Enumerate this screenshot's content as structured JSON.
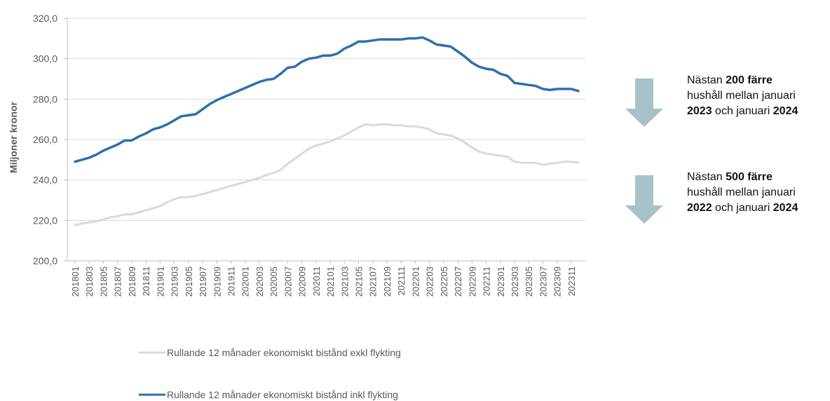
{
  "chart_data": {
    "type": "line",
    "title": "",
    "xlabel": "",
    "ylabel": "Miljoner kronor",
    "ylim": [
      200,
      320
    ],
    "yticks": [
      "200,0",
      "220,0",
      "240,0",
      "260,0",
      "280,0",
      "300,0",
      "320,0"
    ],
    "ytick_values": [
      200,
      220,
      240,
      260,
      280,
      300,
      320
    ],
    "x": [
      "201801",
      "201802",
      "201803",
      "201804",
      "201805",
      "201806",
      "201807",
      "201808",
      "201809",
      "201810",
      "201811",
      "201812",
      "201901",
      "201902",
      "201903",
      "201904",
      "201905",
      "201906",
      "201907",
      "201908",
      "201909",
      "201910",
      "201911",
      "201912",
      "202001",
      "202002",
      "202003",
      "202004",
      "202005",
      "202006",
      "202007",
      "202008",
      "202009",
      "202010",
      "202011",
      "202012",
      "202101",
      "202102",
      "202103",
      "202104",
      "202105",
      "202106",
      "202107",
      "202108",
      "202109",
      "202110",
      "202111",
      "202112",
      "202201",
      "202202",
      "202203",
      "202204",
      "202205",
      "202206",
      "202207",
      "202208",
      "202209",
      "202210",
      "202211",
      "202212",
      "202301",
      "202302",
      "202303",
      "202304",
      "202305",
      "202306",
      "202307",
      "202308",
      "202309",
      "202310",
      "202311",
      "202312"
    ],
    "xtick_labels": [
      "201801",
      "201803",
      "201805",
      "201807",
      "201809",
      "201811",
      "201901",
      "201903",
      "201905",
      "201907",
      "201909",
      "201911",
      "202001",
      "202003",
      "202005",
      "202007",
      "202009",
      "202011",
      "202101",
      "202103",
      "202105",
      "202107",
      "202109",
      "202111",
      "202201",
      "202203",
      "202205",
      "202207",
      "202209",
      "202211",
      "202301",
      "202303",
      "202305",
      "202307",
      "202309",
      "202311"
    ],
    "grid": "horizontal",
    "legend_position": "bottom",
    "series": [
      {
        "name": "Rullande 12 månader ekonomiskt bistånd exkl flykting",
        "color": "#d9d9d9",
        "values": [
          217.5,
          218.5,
          219.0,
          219.5,
          220.5,
          221.5,
          222.0,
          223.0,
          223.0,
          224.0,
          225.0,
          226.0,
          227.0,
          229.0,
          230.5,
          231.5,
          231.5,
          232.0,
          233.0,
          234.0,
          235.0,
          236.0,
          237.0,
          238.0,
          239.0,
          240.0,
          241.0,
          242.5,
          243.5,
          245.0,
          248.0,
          250.5,
          253.0,
          255.5,
          257.0,
          258.0,
          259.0,
          260.5,
          262.0,
          264.0,
          266.0,
          267.5,
          267.0,
          267.5,
          267.5,
          267.0,
          267.0,
          266.5,
          266.5,
          266.0,
          265.0,
          263.0,
          262.5,
          262.0,
          260.5,
          258.5,
          256.0,
          254.0,
          253.0,
          252.5,
          252.0,
          251.5,
          249.0,
          248.5,
          248.5,
          248.5,
          247.5,
          248.0,
          248.5,
          249.0,
          249.0,
          248.5
        ]
      },
      {
        "name": "Rullande 12 månader ekonomiskt bistånd inkl flykting",
        "color": "#2e6fae",
        "values": [
          249.0,
          250.0,
          251.0,
          252.5,
          254.5,
          256.0,
          257.5,
          259.5,
          259.5,
          261.5,
          263.0,
          265.0,
          266.0,
          267.5,
          269.5,
          271.5,
          272.0,
          272.5,
          275.0,
          277.5,
          279.5,
          281.0,
          282.5,
          284.0,
          285.5,
          287.0,
          288.5,
          289.5,
          290.0,
          292.5,
          295.5,
          296.0,
          298.5,
          300.0,
          300.5,
          301.5,
          301.5,
          302.5,
          305.0,
          306.5,
          308.5,
          308.5,
          309.0,
          309.5,
          309.5,
          309.5,
          309.5,
          310.0,
          310.0,
          310.5,
          309.0,
          307.0,
          306.5,
          306.0,
          303.5,
          301.0,
          298.0,
          296.0,
          295.0,
          294.5,
          292.5,
          291.5,
          288.0,
          287.5,
          287.0,
          286.5,
          285.0,
          284.5,
          285.0,
          285.0,
          285.0,
          284.0
        ]
      }
    ]
  },
  "annotations": [
    {
      "line1_pre": "Nästan ",
      "line1_bold": "200 färre",
      "line2": "hushåll mellan januari",
      "line3_bold_a": "2023",
      "line3_mid": " och januari ",
      "line3_bold_b": "2024"
    },
    {
      "line1_pre": "Nästan ",
      "line1_bold": "500 färre",
      "line2": "hushåll mellan januari",
      "line3_bold_a": "2022",
      "line3_mid": " och januari ",
      "line3_bold_b": "2024"
    }
  ],
  "arrow_color": "#a7c1c8",
  "gridline_color": "#d9d9d9"
}
